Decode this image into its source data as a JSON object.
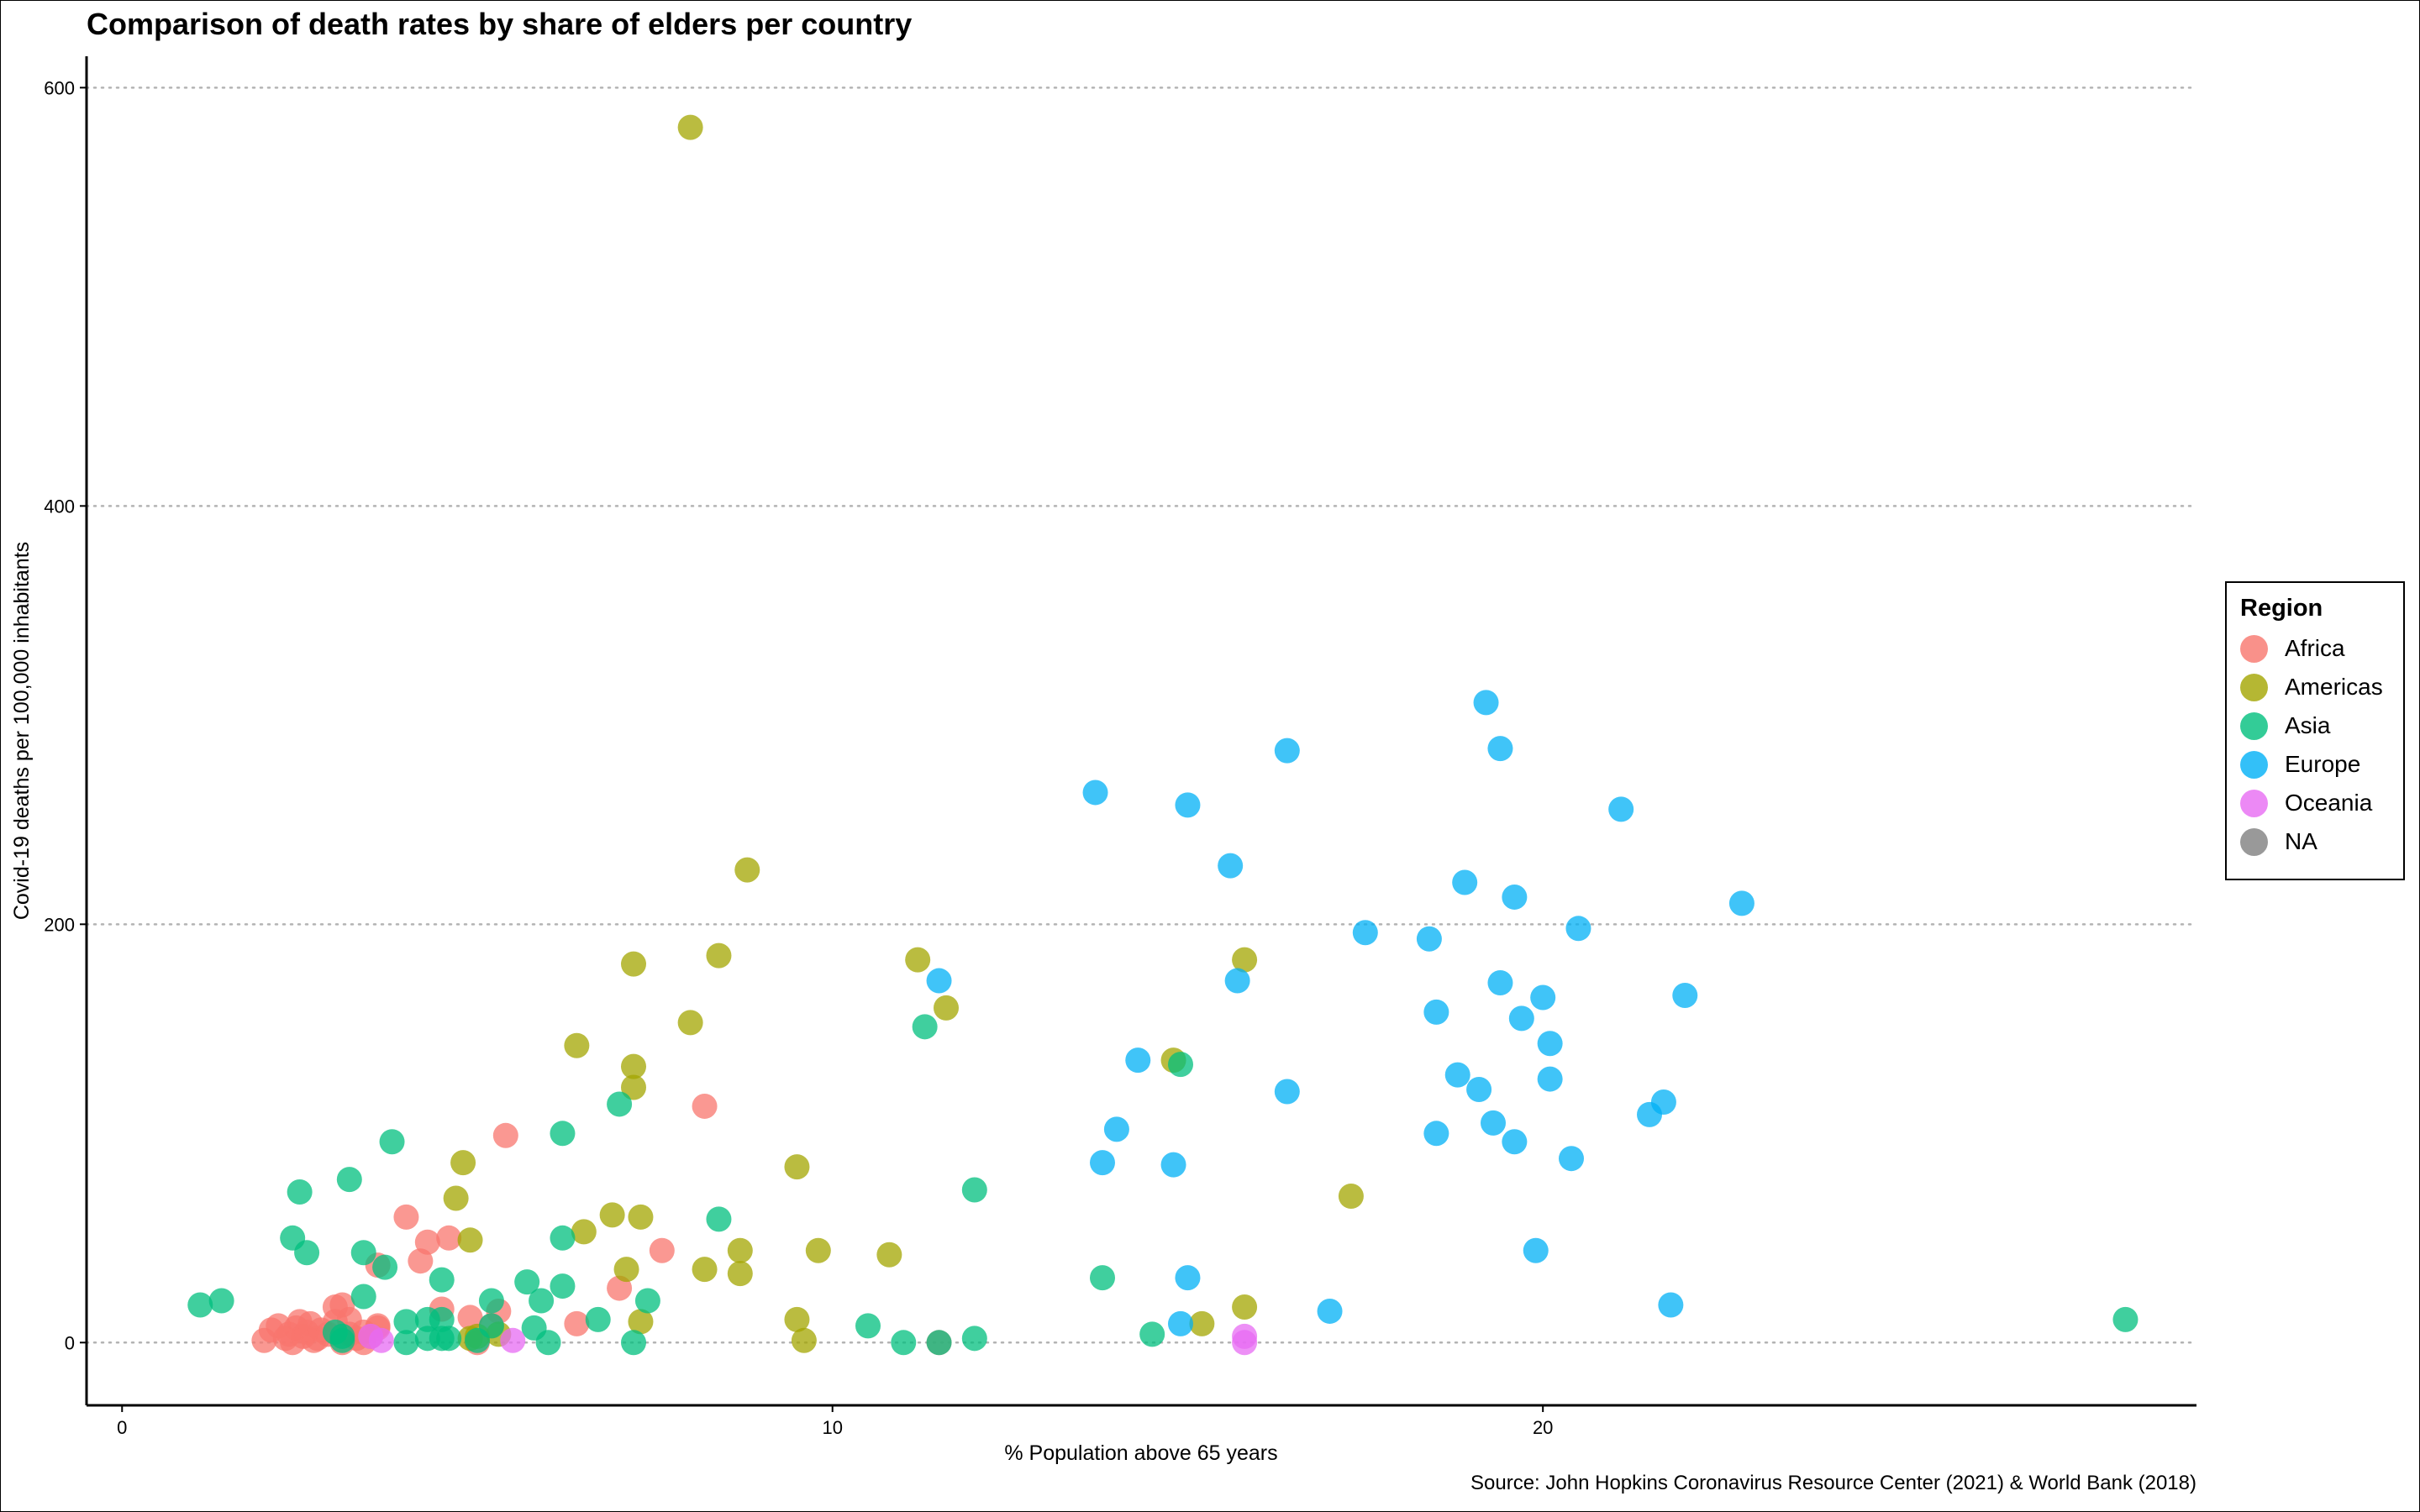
{
  "chart_data": {
    "type": "scatter",
    "title": "Comparison of death rates by share of elders per country",
    "caption": "Source: John Hopkins Coronavirus Resource Center (2021) & World Bank (2018)",
    "xlabel": "% Population above 65 years",
    "ylabel": "Covid-19 deaths per 100,000 inhabitants",
    "xlim": [
      -0.5,
      29.2
    ],
    "ylim": [
      -30,
      615
    ],
    "x_ticks": [
      0,
      10,
      20
    ],
    "y_ticks": [
      0,
      200,
      400,
      600
    ],
    "grid": "horizontal dotted major",
    "legend": {
      "title": "Region",
      "position": "right",
      "entries": [
        {
          "name": "Africa",
          "color": "#F8766D"
        },
        {
          "name": "Americas",
          "color": "#A3A500"
        },
        {
          "name": "Asia",
          "color": "#00BF7D"
        },
        {
          "name": "Europe",
          "color": "#00B0F6"
        },
        {
          "name": "Oceania",
          "color": "#E76BF3"
        },
        {
          "name": "NA",
          "color": "#7F7F7F"
        }
      ]
    },
    "series": [
      {
        "name": "Africa",
        "color": "#F8766D",
        "points": [
          [
            2.0,
            1
          ],
          [
            2.1,
            6
          ],
          [
            2.2,
            8
          ],
          [
            2.3,
            2
          ],
          [
            2.35,
            4
          ],
          [
            2.4,
            0
          ],
          [
            2.45,
            7
          ],
          [
            2.5,
            10
          ],
          [
            2.55,
            3
          ],
          [
            2.6,
            5
          ],
          [
            2.65,
            9
          ],
          [
            2.7,
            1
          ],
          [
            2.75,
            2
          ],
          [
            2.8,
            6
          ],
          [
            2.9,
            4
          ],
          [
            3.0,
            10
          ],
          [
            3.0,
            17
          ],
          [
            3.1,
            18
          ],
          [
            3.1,
            0
          ],
          [
            3.2,
            11
          ],
          [
            3.2,
            4
          ],
          [
            3.3,
            2
          ],
          [
            3.4,
            5
          ],
          [
            3.4,
            0
          ],
          [
            3.5,
            3
          ],
          [
            3.6,
            7
          ],
          [
            3.6,
            8
          ],
          [
            3.6,
            37
          ],
          [
            4.0,
            60
          ],
          [
            4.2,
            39
          ],
          [
            4.3,
            48
          ],
          [
            4.5,
            16
          ],
          [
            4.6,
            50
          ],
          [
            4.9,
            12
          ],
          [
            5.0,
            0
          ],
          [
            5.2,
            8
          ],
          [
            5.3,
            15
          ],
          [
            5.4,
            99
          ],
          [
            6.4,
            9
          ],
          [
            7.0,
            26
          ],
          [
            7.6,
            44
          ],
          [
            8.2,
            113
          ],
          [
            11.5,
            0
          ]
        ]
      },
      {
        "name": "Americas",
        "color": "#A3A500",
        "points": [
          [
            8.0,
            581
          ],
          [
            8.8,
            226
          ],
          [
            8.4,
            185
          ],
          [
            7.2,
            181
          ],
          [
            8.0,
            153
          ],
          [
            6.4,
            142
          ],
          [
            7.2,
            132
          ],
          [
            7.2,
            122
          ],
          [
            4.8,
            86
          ],
          [
            4.7,
            69
          ],
          [
            4.9,
            49
          ],
          [
            6.9,
            61
          ],
          [
            7.3,
            60
          ],
          [
            6.5,
            53
          ],
          [
            8.2,
            35
          ],
          [
            8.7,
            44
          ],
          [
            8.7,
            33
          ],
          [
            7.1,
            35
          ],
          [
            7.3,
            10
          ],
          [
            5.0,
            3
          ],
          [
            4.9,
            2
          ],
          [
            5.3,
            4
          ],
          [
            9.5,
            84
          ],
          [
            9.8,
            44
          ],
          [
            9.5,
            11
          ],
          [
            9.6,
            1
          ],
          [
            10.8,
            42
          ],
          [
            11.2,
            183
          ],
          [
            11.6,
            160
          ],
          [
            14.8,
            135
          ],
          [
            15.2,
            9
          ],
          [
            15.8,
            183
          ],
          [
            15.8,
            17
          ],
          [
            17.3,
            70
          ]
        ]
      },
      {
        "name": "Asia",
        "color": "#00BF7D",
        "points": [
          [
            1.1,
            18
          ],
          [
            1.4,
            20
          ],
          [
            2.4,
            50
          ],
          [
            2.5,
            72
          ],
          [
            2.6,
            43
          ],
          [
            3.0,
            5
          ],
          [
            3.1,
            1
          ],
          [
            3.1,
            3
          ],
          [
            3.2,
            78
          ],
          [
            3.4,
            22
          ],
          [
            3.4,
            43
          ],
          [
            3.7,
            36
          ],
          [
            3.8,
            96
          ],
          [
            4.0,
            10
          ],
          [
            4.0,
            0
          ],
          [
            4.3,
            11
          ],
          [
            4.3,
            2
          ],
          [
            4.5,
            30
          ],
          [
            4.5,
            11
          ],
          [
            4.5,
            2
          ],
          [
            4.6,
            2
          ],
          [
            5.0,
            1
          ],
          [
            5.2,
            20
          ],
          [
            5.2,
            8
          ],
          [
            5.7,
            29
          ],
          [
            5.8,
            7
          ],
          [
            5.9,
            20
          ],
          [
            6.0,
            0
          ],
          [
            6.2,
            27
          ],
          [
            6.2,
            50
          ],
          [
            6.2,
            100
          ],
          [
            6.7,
            11
          ],
          [
            7.0,
            114
          ],
          [
            7.2,
            0
          ],
          [
            7.4,
            20
          ],
          [
            8.4,
            59
          ],
          [
            10.5,
            8
          ],
          [
            11.0,
            0
          ],
          [
            11.3,
            151
          ],
          [
            11.5,
            0
          ],
          [
            12.0,
            2
          ],
          [
            12.0,
            73
          ],
          [
            13.8,
            31
          ],
          [
            14.5,
            4
          ],
          [
            14.9,
            133
          ],
          [
            28.2,
            11
          ]
        ]
      },
      {
        "name": "Europe",
        "color": "#00B0F6",
        "points": [
          [
            13.7,
            263
          ],
          [
            13.8,
            86
          ],
          [
            14.0,
            102
          ],
          [
            14.3,
            135
          ],
          [
            14.8,
            85
          ],
          [
            14.9,
            9
          ],
          [
            15.0,
            31
          ],
          [
            15.0,
            257
          ],
          [
            15.6,
            228
          ],
          [
            15.7,
            173
          ],
          [
            16.4,
            283
          ],
          [
            16.4,
            120
          ],
          [
            17.0,
            15
          ],
          [
            17.5,
            196
          ],
          [
            18.4,
            193
          ],
          [
            18.5,
            100
          ],
          [
            18.5,
            158
          ],
          [
            18.8,
            128
          ],
          [
            18.9,
            220
          ],
          [
            19.1,
            121
          ],
          [
            19.2,
            306
          ],
          [
            19.3,
            105
          ],
          [
            19.4,
            172
          ],
          [
            19.4,
            284
          ],
          [
            19.6,
            213
          ],
          [
            19.6,
            96
          ],
          [
            19.7,
            155
          ],
          [
            19.9,
            44
          ],
          [
            20.0,
            165
          ],
          [
            20.1,
            143
          ],
          [
            20.1,
            126
          ],
          [
            20.4,
            88
          ],
          [
            20.5,
            198
          ],
          [
            21.1,
            255
          ],
          [
            21.5,
            109
          ],
          [
            21.7,
            115
          ],
          [
            21.8,
            18
          ],
          [
            22.0,
            166
          ],
          [
            22.8,
            210
          ],
          [
            11.5,
            173
          ]
        ]
      },
      {
        "name": "Oceania",
        "color": "#E76BF3",
        "points": [
          [
            3.5,
            3
          ],
          [
            3.65,
            1
          ],
          [
            5.5,
            1
          ],
          [
            15.8,
            3
          ],
          [
            15.8,
            0
          ]
        ]
      }
    ]
  }
}
